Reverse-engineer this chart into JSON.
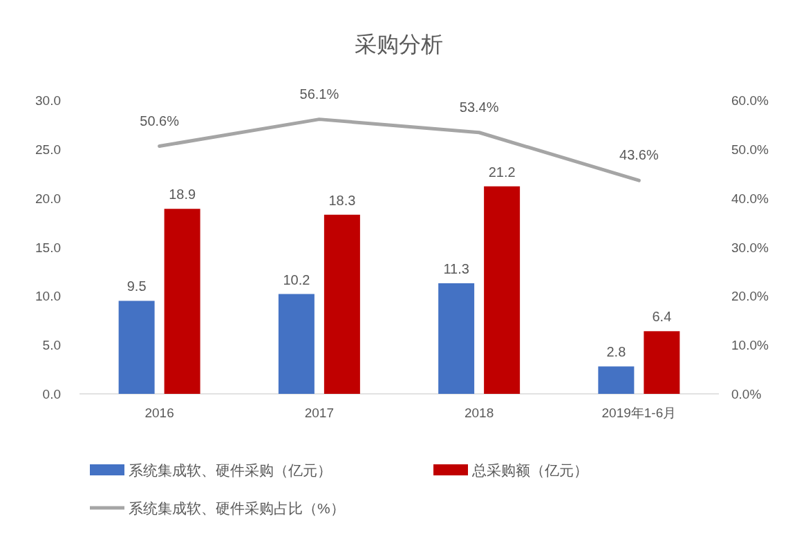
{
  "chart_data": {
    "type": "bar",
    "title": "采购分析",
    "categories": [
      "2016",
      "2017",
      "2018",
      "2019年1-6月"
    ],
    "ylim": [
      0,
      30
    ],
    "yticks": [
      {
        "value": 0,
        "label": "0.0"
      },
      {
        "value": 5,
        "label": "5.0"
      },
      {
        "value": 10,
        "label": "10.0"
      },
      {
        "value": 15,
        "label": "15.0"
      },
      {
        "value": 20,
        "label": "20.0"
      },
      {
        "value": 25,
        "label": "25.0"
      },
      {
        "value": 30,
        "label": "30.0"
      }
    ],
    "y2lim": [
      0,
      60
    ],
    "y2ticks": [
      {
        "value": 0,
        "label": "0.0%"
      },
      {
        "value": 10,
        "label": "10.0%"
      },
      {
        "value": 20,
        "label": "20.0%"
      },
      {
        "value": 30,
        "label": "30.0%"
      },
      {
        "value": 40,
        "label": "40.0%"
      },
      {
        "value": 50,
        "label": "50.0%"
      },
      {
        "value": 60,
        "label": "60.0%"
      }
    ],
    "legend": "bottom",
    "series": [
      {
        "name": "系统集成软、硬件采购（亿元）",
        "color": "#4472c4",
        "values": [
          9.5,
          10.2,
          11.3,
          2.8
        ],
        "value_labels": [
          "9.5",
          "10.2",
          "11.3",
          "2.8"
        ]
      },
      {
        "name": "总采购额（亿元）",
        "color": "#c00000",
        "values": [
          18.9,
          18.3,
          21.2,
          6.4
        ],
        "value_labels": [
          "18.9",
          "18.3",
          "21.2",
          "6.4"
        ]
      },
      {
        "name": "系统集成软、硬件采购占比（%）",
        "type": "line",
        "axis": "y2",
        "color": "#a5a5a5",
        "values": [
          50.6,
          56.1,
          53.4,
          43.6
        ],
        "value_labels": [
          "50.6%",
          "56.1%",
          "53.4%",
          "43.6%"
        ]
      }
    ]
  }
}
